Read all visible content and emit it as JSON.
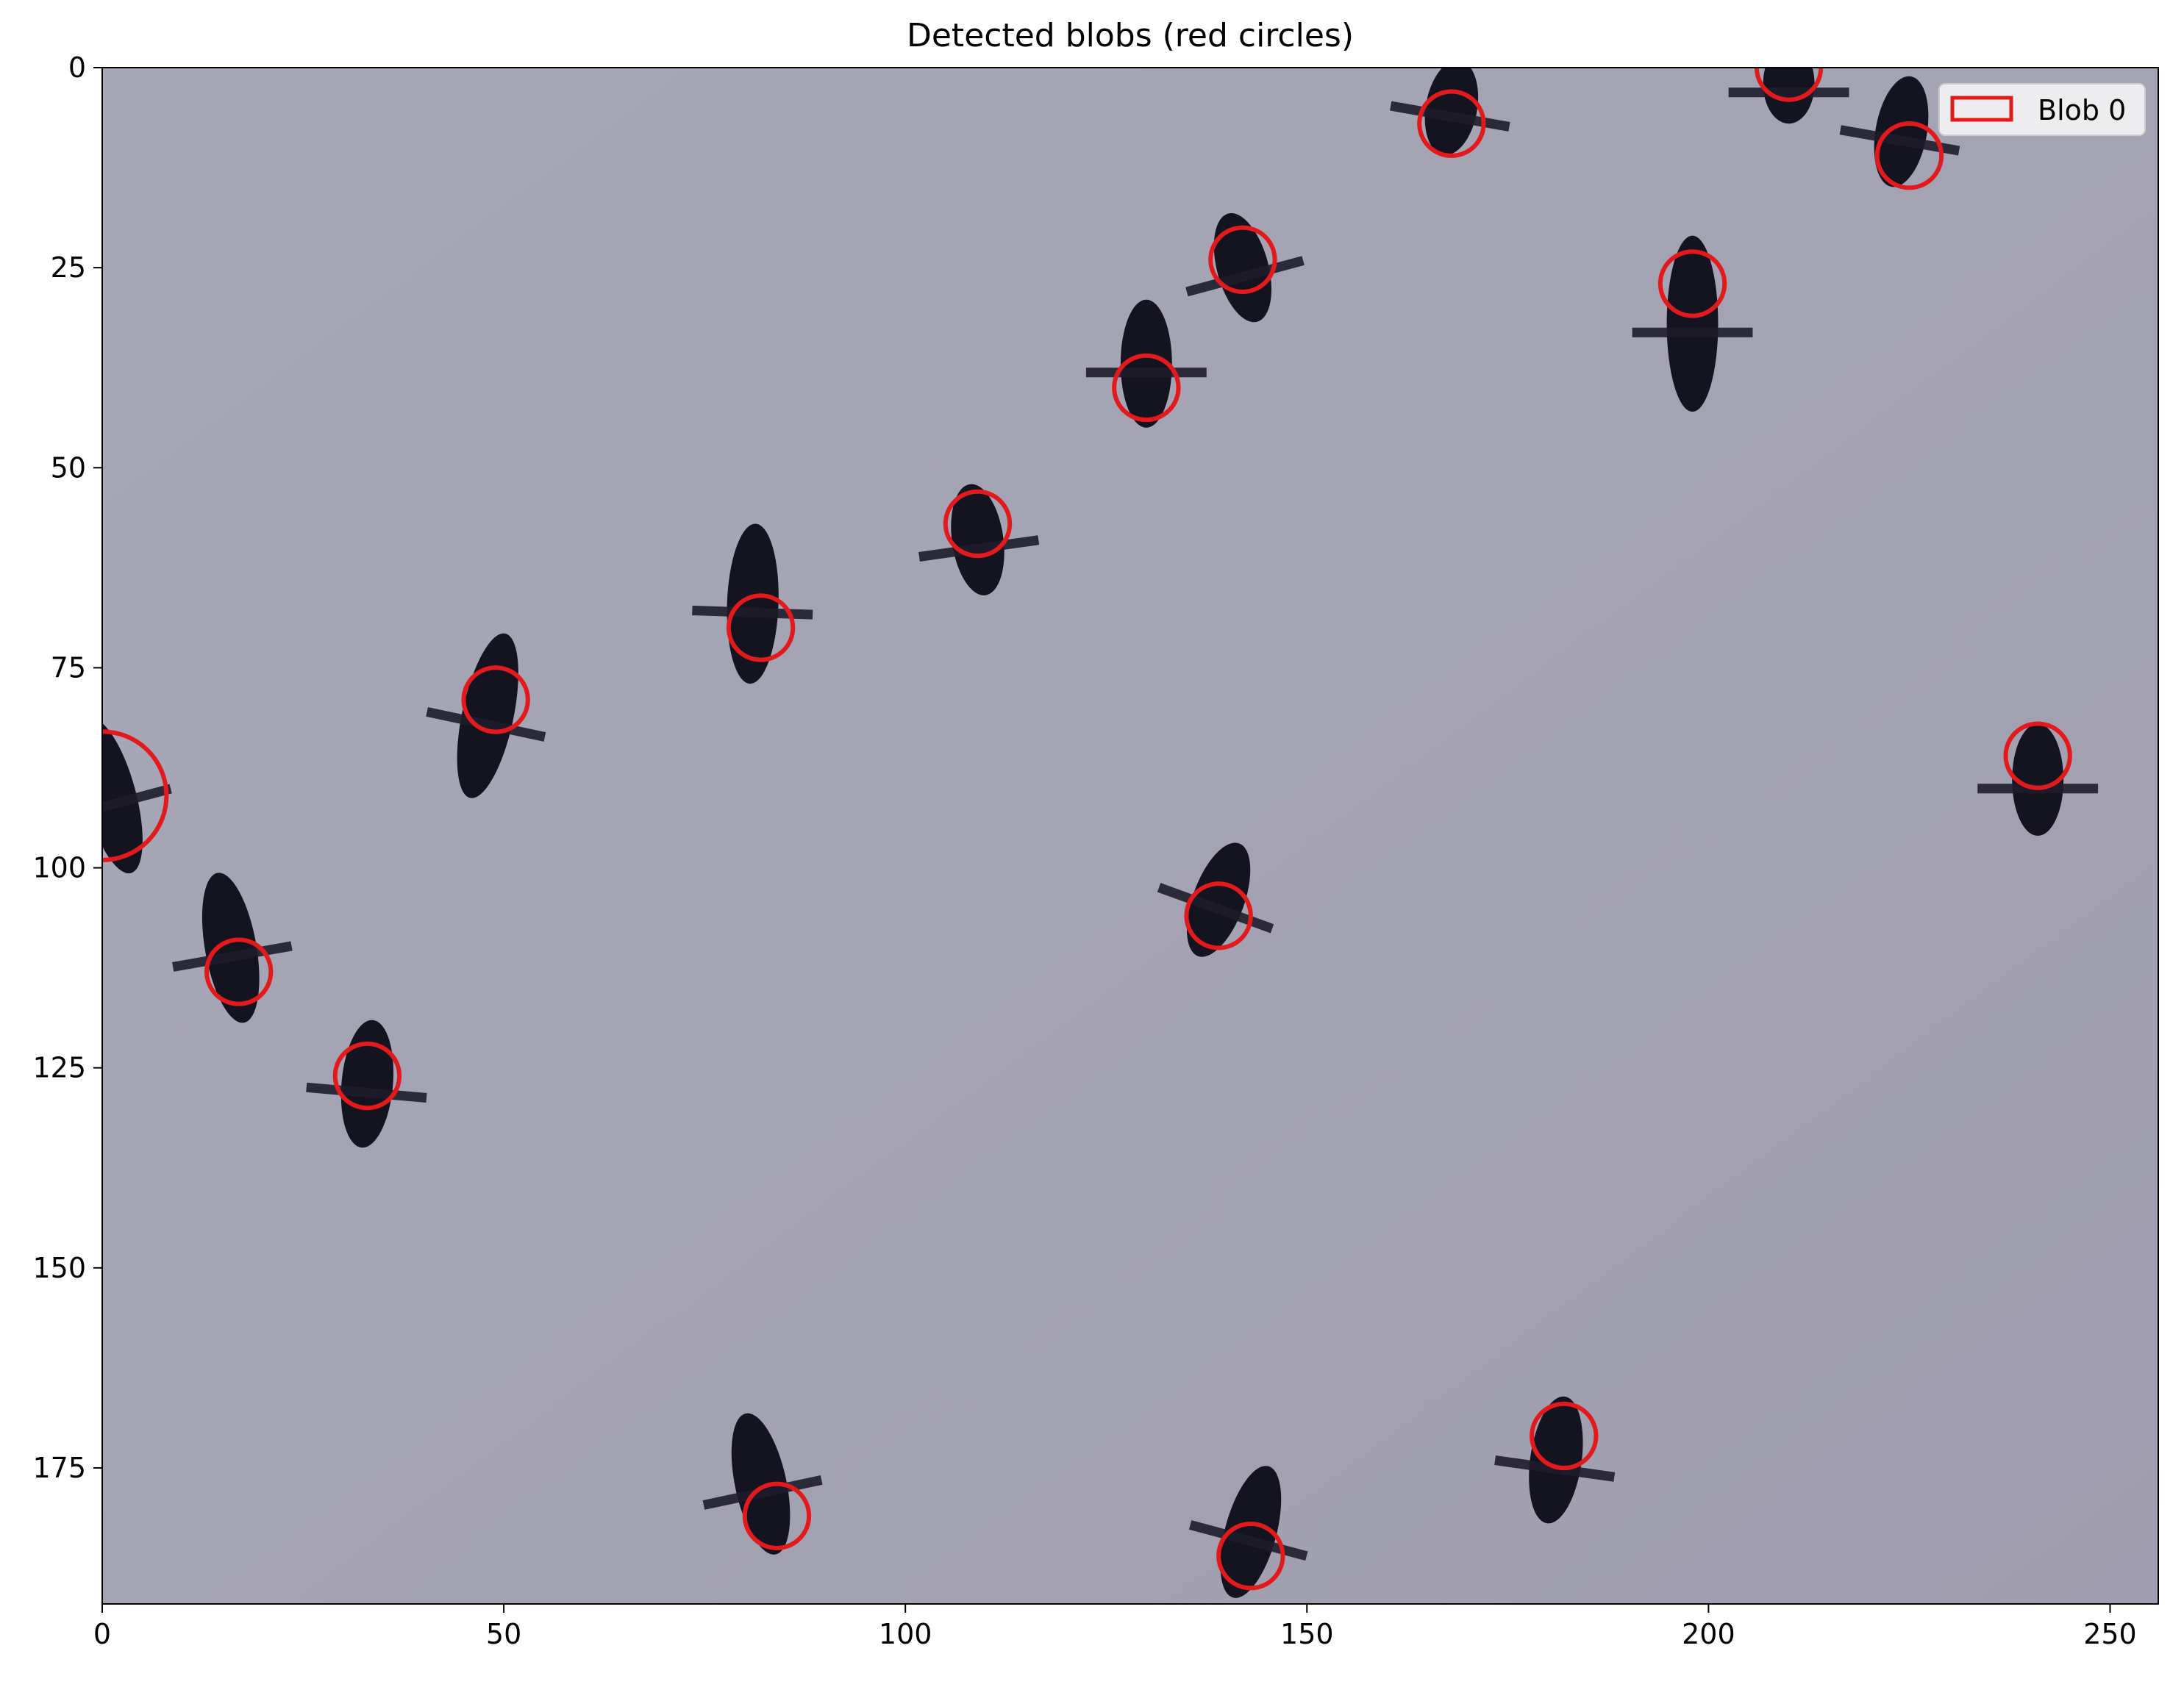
{
  "chart_data": {
    "type": "scatter",
    "title": "Detected blobs (red circles)",
    "xlabel": "",
    "ylabel": "",
    "xlim": [
      0,
      256
    ],
    "ylim": [
      192,
      0
    ],
    "y_inverted": true,
    "x_ticks": [
      "0",
      "50",
      "100",
      "150",
      "200",
      "250"
    ],
    "y_ticks": [
      "0",
      "25",
      "50",
      "75",
      "100",
      "125",
      "150",
      "175"
    ],
    "grid": false,
    "legend": {
      "placement": "top-right",
      "entries": [
        "Blob 0"
      ]
    },
    "background": "image of birds in flight against a grey sky",
    "circle_color": "#e31a1c",
    "blobs": [
      {
        "x": 0,
        "y": 91,
        "r": 8
      },
      {
        "x": 17,
        "y": 113,
        "r": 4
      },
      {
        "x": 33,
        "y": 126,
        "r": 4
      },
      {
        "x": 49,
        "y": 79,
        "r": 4
      },
      {
        "x": 82,
        "y": 70,
        "r": 4
      },
      {
        "x": 84,
        "y": 181,
        "r": 4
      },
      {
        "x": 109,
        "y": 57,
        "r": 4
      },
      {
        "x": 130,
        "y": 40,
        "r": 4
      },
      {
        "x": 139,
        "y": 106,
        "r": 4
      },
      {
        "x": 142,
        "y": 24,
        "r": 4
      },
      {
        "x": 143,
        "y": 186,
        "r": 4
      },
      {
        "x": 168,
        "y": 7,
        "r": 4
      },
      {
        "x": 182,
        "y": 171,
        "r": 4
      },
      {
        "x": 198,
        "y": 27,
        "r": 4
      },
      {
        "x": 210,
        "y": 0,
        "r": 4
      },
      {
        "x": 225,
        "y": 11,
        "r": 4
      },
      {
        "x": 241,
        "y": 86,
        "r": 4
      }
    ],
    "birds": [
      {
        "x": 1,
        "y": 91,
        "angle": -15,
        "len": 20
      },
      {
        "x": 16,
        "y": 110,
        "angle": -10,
        "len": 19
      },
      {
        "x": 33,
        "y": 127,
        "angle": 5,
        "len": 16
      },
      {
        "x": 48,
        "y": 81,
        "angle": 12,
        "len": 21
      },
      {
        "x": 81,
        "y": 67,
        "angle": 2,
        "len": 20
      },
      {
        "x": 82,
        "y": 177,
        "angle": -12,
        "len": 18
      },
      {
        "x": 109,
        "y": 59,
        "angle": -8,
        "len": 14
      },
      {
        "x": 130,
        "y": 37,
        "angle": 0,
        "len": 16
      },
      {
        "x": 139,
        "y": 104,
        "angle": 20,
        "len": 15
      },
      {
        "x": 142,
        "y": 25,
        "angle": -15,
        "len": 14
      },
      {
        "x": 143,
        "y": 183,
        "angle": 15,
        "len": 17
      },
      {
        "x": 168,
        "y": 5,
        "angle": 10,
        "len": 12
      },
      {
        "x": 181,
        "y": 174,
        "angle": 8,
        "len": 16
      },
      {
        "x": 198,
        "y": 32,
        "angle": 0,
        "len": 22
      },
      {
        "x": 210,
        "y": 2,
        "angle": 0,
        "len": 10
      },
      {
        "x": 224,
        "y": 8,
        "angle": 10,
        "len": 14
      },
      {
        "x": 241,
        "y": 89,
        "angle": 0,
        "len": 14
      }
    ]
  }
}
